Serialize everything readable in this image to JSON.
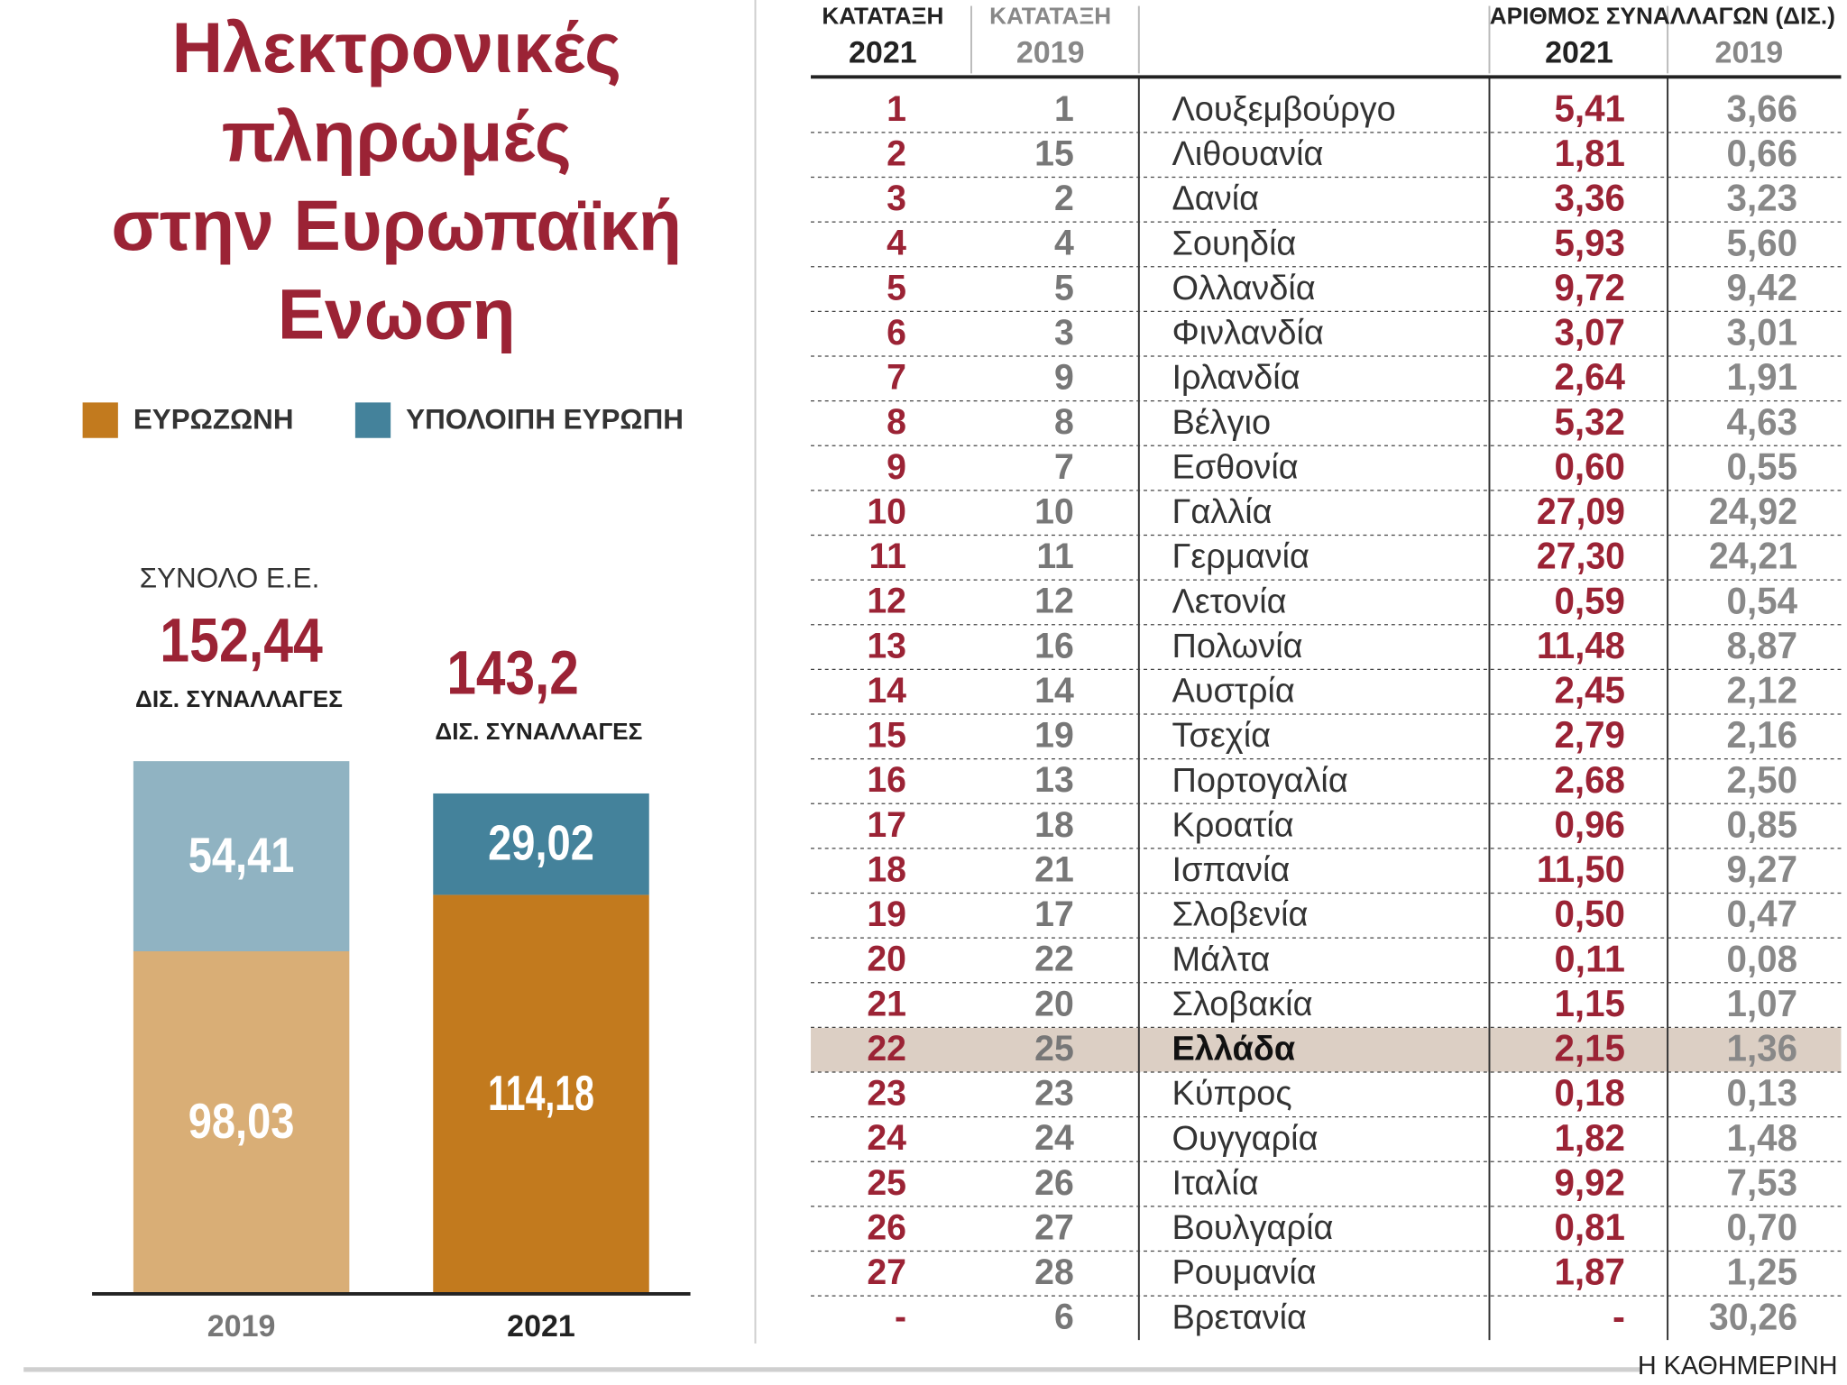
{
  "chart_data": {
    "type": "stacked_bar",
    "title": [
      "Ηλεκτρονικές",
      "πληρωμές",
      "στην Ευρωπαϊκή",
      "Ενωση"
    ],
    "categories": [
      "2019",
      "2021"
    ],
    "series": [
      {
        "name": "ΕΥΡΩΖΩΝΗ",
        "color": "#c27a1e",
        "colors": [
          "#d9ae76",
          "#c27a1e"
        ],
        "values": [
          98.03,
          114.18
        ],
        "value_labels": [
          "98,03",
          "114,18"
        ]
      },
      {
        "name": "ΥΠΟΛΟΙΠΗ ΕΥΡΩΠΗ",
        "color": "#44829b",
        "colors": [
          "#90b3c2",
          "#44829b"
        ],
        "values": [
          54.41,
          29.02
        ],
        "value_labels": [
          "54,41",
          "29,02"
        ]
      }
    ],
    "total_title": "ΣΥΝΟΛΟ Ε.Ε.",
    "total_unit": "ΔΙΣ. ΣΥΝΑΛΛΑΓΕΣ",
    "totals": {
      "values": [
        152.44,
        143.2
      ],
      "value_labels": [
        "152,44",
        "143,2"
      ]
    }
  },
  "table": {
    "columns": [
      {
        "label": "ΚΑΤΑΤΑΞΗ",
        "sub": "2021"
      },
      {
        "label": "ΚΑΤΑΤΑΞΗ",
        "sub": "2019"
      }
    ],
    "group_header": "ΑΡΙΘΜΟΣ ΣΥΝΑΛΛΑΓΩΝ (ΔΙΣ.)",
    "group_columns": [
      "2021",
      "2019"
    ],
    "highlight_row": 21,
    "rows": [
      [
        "1",
        "1",
        "Λουξεμβούργο",
        "5,41",
        "3,66"
      ],
      [
        "2",
        "15",
        "Λιθουανία",
        "1,81",
        "0,66"
      ],
      [
        "3",
        "2",
        "Δανία",
        "3,36",
        "3,23"
      ],
      [
        "4",
        "4",
        "Σουηδία",
        "5,93",
        "5,60"
      ],
      [
        "5",
        "5",
        "Ολλανδία",
        "9,72",
        "9,42"
      ],
      [
        "6",
        "3",
        "Φινλανδία",
        "3,07",
        "3,01"
      ],
      [
        "7",
        "9",
        "Ιρλανδία",
        "2,64",
        "1,91"
      ],
      [
        "8",
        "8",
        "Βέλγιο",
        "5,32",
        "4,63"
      ],
      [
        "9",
        "7",
        "Εσθονία",
        "0,60",
        "0,55"
      ],
      [
        "10",
        "10",
        "Γαλλία",
        "27,09",
        "24,92"
      ],
      [
        "11",
        "11",
        "Γερμανία",
        "27,30",
        "24,21"
      ],
      [
        "12",
        "12",
        "Λετονία",
        "0,59",
        "0,54"
      ],
      [
        "13",
        "16",
        "Πολωνία",
        "11,48",
        "8,87"
      ],
      [
        "14",
        "14",
        "Αυστρία",
        "2,45",
        "2,12"
      ],
      [
        "15",
        "19",
        "Τσεχία",
        "2,79",
        "2,16"
      ],
      [
        "16",
        "13",
        "Πορτογαλία",
        "2,68",
        "2,50"
      ],
      [
        "17",
        "18",
        "Κροατία",
        "0,96",
        "0,85"
      ],
      [
        "18",
        "21",
        "Ισπανία",
        "11,50",
        "9,27"
      ],
      [
        "19",
        "17",
        "Σλοβενία",
        "0,50",
        "0,47"
      ],
      [
        "20",
        "22",
        "Μάλτα",
        "0,11",
        "0,08"
      ],
      [
        "21",
        "20",
        "Σλοβακία",
        "1,15",
        "1,07"
      ],
      [
        "22",
        "25",
        "Ελλάδα",
        "2,15",
        "1,36"
      ],
      [
        "23",
        "23",
        "Κύπρος",
        "0,18",
        "0,13"
      ],
      [
        "24",
        "24",
        "Ουγγαρία",
        "1,82",
        "1,48"
      ],
      [
        "25",
        "26",
        "Ιταλία",
        "9,92",
        "7,53"
      ],
      [
        "26",
        "27",
        "Βουλγαρία",
        "0,81",
        "0,70"
      ],
      [
        "27",
        "28",
        "Ρουμανία",
        "1,87",
        "1,25"
      ],
      [
        "-",
        "6",
        "Βρετανία",
        "-",
        "30,26"
      ]
    ]
  },
  "footer": "Η ΚΑΘΗΜΕΡΙΝΗ"
}
